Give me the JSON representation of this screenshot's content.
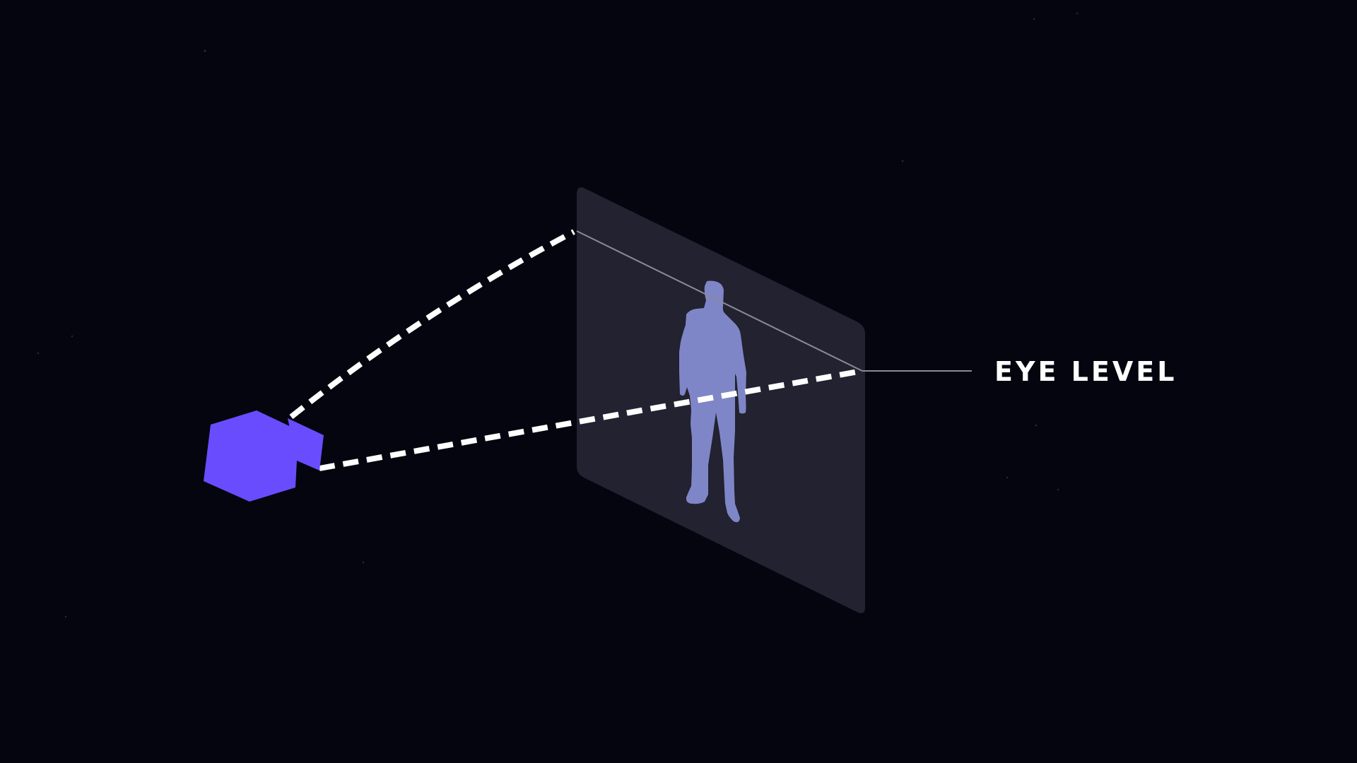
{
  "label": {
    "text": "EYE LEVEL"
  },
  "colors": {
    "background": "#05050f",
    "camera": "#6a4cff",
    "frame": "#222230",
    "silhouette": "#7f86c7",
    "sight_lines": "#ffffff",
    "eye_level_line": "#8a8a98",
    "label": "#ffffff"
  },
  "icons": {
    "camera": "camera-icon",
    "person": "person-silhouette-icon"
  }
}
